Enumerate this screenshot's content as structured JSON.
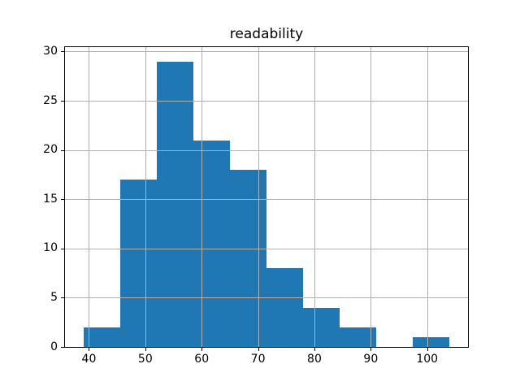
{
  "figure": {
    "background_color": "#ffffff",
    "title": "readability"
  },
  "chart_data": {
    "type": "bar",
    "subtype": "histogram",
    "title": "readability",
    "xlabel": "",
    "ylabel": "",
    "bin_edges": [
      39,
      45.5,
      52,
      58.5,
      65,
      71.5,
      78,
      84.5,
      91,
      97.5,
      104
    ],
    "counts": [
      2,
      17,
      29,
      21,
      18,
      8,
      4,
      2,
      0,
      1
    ],
    "x_ticks": [
      40,
      50,
      60,
      70,
      80,
      90,
      100
    ],
    "y_ticks": [
      0,
      5,
      10,
      15,
      20,
      25,
      30
    ],
    "xlim": [
      35.75,
      107.25
    ],
    "ylim": [
      0,
      30.45
    ],
    "grid": true,
    "grid_on_top_of_bars": true,
    "legend": null,
    "colors": {
      "bar": "#1f77b4",
      "grid": "#b0b0b0",
      "spine": "#000000",
      "tick": "#000000",
      "text": "#000000"
    }
  }
}
